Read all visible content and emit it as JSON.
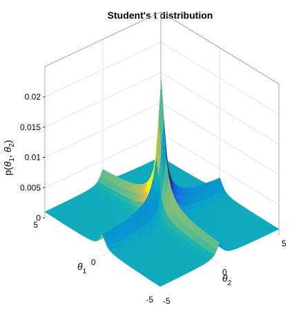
{
  "chart_data": {
    "type": "surface",
    "title": "Student's t distribution",
    "xlabel": "θ2",
    "ylabel": "θ1",
    "zlabel": "p(θ1, θ2)",
    "x_axis": {
      "label_base": "θ",
      "label_sub": "2",
      "ticks": [
        "-5",
        "0",
        "5"
      ],
      "range": [
        -5,
        5
      ]
    },
    "y_axis": {
      "label_base": "θ",
      "label_sub": "1",
      "ticks": [
        "5",
        "0",
        "-5"
      ],
      "range": [
        -5,
        5
      ]
    },
    "z_axis": {
      "label_prefix": "p(",
      "label_theta1": "θ",
      "label_sub1": "1",
      "label_sep": ", ",
      "label_theta2": "θ",
      "label_sub2": "2",
      "label_suffix": ")",
      "ticks": [
        "0",
        "0.005",
        "0.01",
        "0.015",
        "0.02"
      ],
      "tick_values": [
        0,
        0.005,
        0.01,
        0.015,
        0.02
      ],
      "range": [
        0,
        0.025
      ]
    },
    "surface": {
      "peak_value": 0.0205,
      "peak_location": [
        0,
        0
      ],
      "baseline_value": 0.001,
      "form": "heavy-tailed ridges along both axes, sharp central peak",
      "colormap": "parula"
    },
    "grid": true,
    "box": "open 3D box with grid lines on back walls",
    "view": "azimuth -45, elevation 30"
  }
}
